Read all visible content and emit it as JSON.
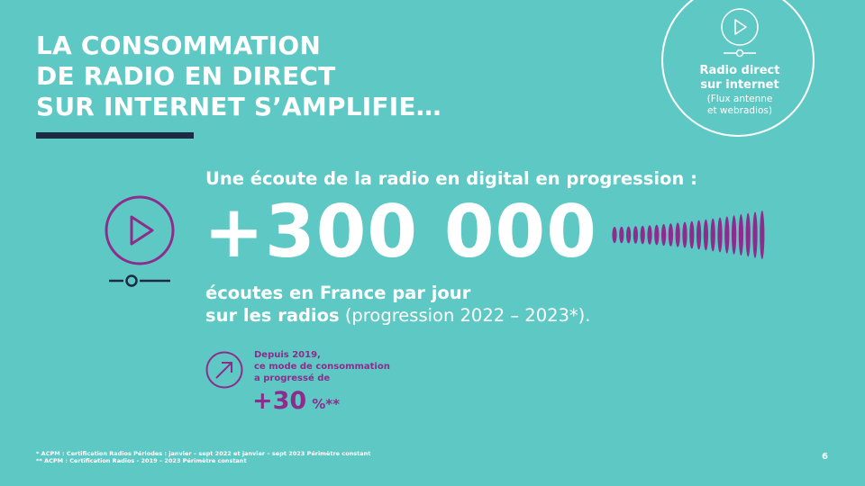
{
  "title": {
    "lines": [
      "LA CONSOMMATION",
      "DE RADIO EN DIRECT",
      "SUR INTERNET S’AMPLIFIE…"
    ]
  },
  "badge": {
    "title_line1": "Radio direct",
    "title_line2": "sur internet",
    "sub_line1": "(Flux antenne",
    "sub_line2": "et webradios)",
    "icon": "play-icon"
  },
  "main": {
    "subhead": "Une écoute de la radio en digital en progression :",
    "big_number": "+300 000",
    "desc_line1": "écoutes en France par jour",
    "desc_line2_bold": "sur les radios",
    "desc_line2_rest": " (progression 2022 – 2023*)."
  },
  "growth": {
    "line1": "Depuis 2019,",
    "line2": "ce mode de consommation",
    "line3": "a progressé de",
    "value": "+30",
    "unit": "%**",
    "icon": "arrow-up-right-icon"
  },
  "footnotes": {
    "line1": "* ACPM : Certification Radios Périodes : janvier – sept 2022 et janvier –  sept 2023 Périmètre constant",
    "line2": "** ACPM : Certification Radios - 2019 – 2023 Périmètre constant"
  },
  "page_number": "6",
  "colors": {
    "background": "#5ec8c4",
    "accent": "#8e2c8c",
    "rule": "#1c2a44",
    "text": "#ffffff"
  }
}
